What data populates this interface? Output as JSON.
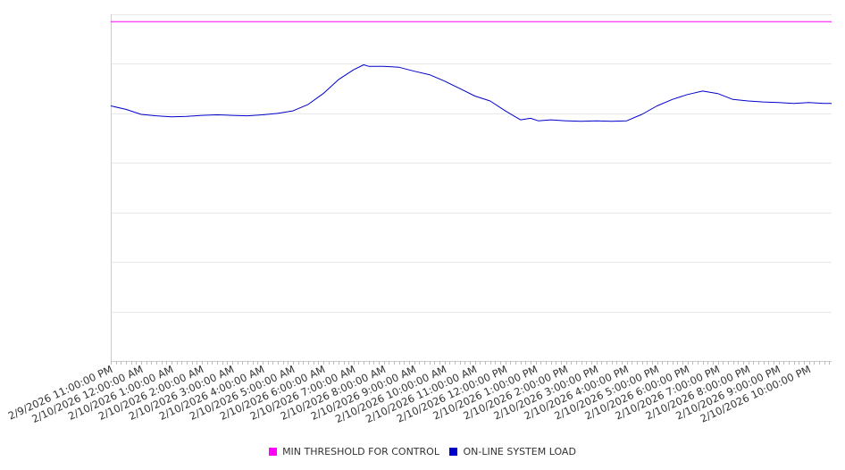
{
  "chart_data": {
    "type": "line",
    "title": "",
    "xlabel": "",
    "ylabel": "",
    "y_tick_labels_shown": false,
    "grid": "horizontal",
    "legend_position": "bottom",
    "x_tick_labels": [
      "2/9/2026 11:00:00 PM",
      "2/10/2026 12:00:00 AM",
      "2/10/2026 1:00:00 AM",
      "2/10/2026 2:00:00 AM",
      "2/10/2026 3:00:00 AM",
      "2/10/2026 4:00:00 AM",
      "2/10/2026 5:00:00 AM",
      "2/10/2026 6:00:00 AM",
      "2/10/2026 7:00:00 AM",
      "2/10/2026 8:00:00 AM",
      "2/10/2026 9:00:00 AM",
      "2/10/2026 10:00:00 AM",
      "2/10/2026 11:00:00 AM",
      "2/10/2026 12:00:00 PM",
      "2/10/2026 1:00:00 PM",
      "2/10/2026 2:00:00 PM",
      "2/10/2026 3:00:00 PM",
      "2/10/2026 4:00:00 PM",
      "2/10/2026 5:00:00 PM",
      "2/10/2026 6:00:00 PM",
      "2/10/2026 7:00:00 PM",
      "2/10/2026 8:00:00 PM",
      "2/10/2026 9:00:00 PM",
      "2/10/2026 10:00:00 PM"
    ],
    "ylim": [
      0,
      7
    ],
    "series": [
      {
        "name": "MIN THRESHOLD FOR CONTROL",
        "color": "#ff00ff",
        "x": [
          "2/9/2026 11:00:00 PM",
          "2/10/2026 10:45:00 PM"
        ],
        "y": [
          6.85,
          6.85
        ]
      },
      {
        "name": "ON-LINE SYSTEM LOAD",
        "color": "#0000cc",
        "x": [
          "2/9/2026 11:00:00 PM",
          "2/9/2026 11:30:00 PM",
          "2/10/2026 12:00:00 AM",
          "2/10/2026 12:30:00 AM",
          "2/10/2026 1:00:00 AM",
          "2/10/2026 1:30:00 AM",
          "2/10/2026 2:00:00 AM",
          "2/10/2026 2:30:00 AM",
          "2/10/2026 3:00:00 AM",
          "2/10/2026 3:30:00 AM",
          "2/10/2026 4:00:00 AM",
          "2/10/2026 4:30:00 AM",
          "2/10/2026 5:00:00 AM",
          "2/10/2026 5:30:00 AM",
          "2/10/2026 6:00:00 AM",
          "2/10/2026 6:30:00 AM",
          "2/10/2026 7:00:00 AM",
          "2/10/2026 7:20:00 AM",
          "2/10/2026 7:30:00 AM",
          "2/10/2026 8:00:00 AM",
          "2/10/2026 8:30:00 AM",
          "2/10/2026 9:00:00 AM",
          "2/10/2026 9:30:00 AM",
          "2/10/2026 10:00:00 AM",
          "2/10/2026 10:30:00 AM",
          "2/10/2026 11:00:00 AM",
          "2/10/2026 11:30:00 AM",
          "2/10/2026 12:00:00 PM",
          "2/10/2026 12:30:00 PM",
          "2/10/2026 12:50:00 PM",
          "2/10/2026 1:05:00 PM",
          "2/10/2026 1:30:00 PM",
          "2/10/2026 2:00:00 PM",
          "2/10/2026 2:30:00 PM",
          "2/10/2026 3:00:00 PM",
          "2/10/2026 3:30:00 PM",
          "2/10/2026 4:00:00 PM",
          "2/10/2026 4:30:00 PM",
          "2/10/2026 5:00:00 PM",
          "2/10/2026 5:30:00 PM",
          "2/10/2026 6:00:00 PM",
          "2/10/2026 6:30:00 PM",
          "2/10/2026 7:00:00 PM",
          "2/10/2026 7:30:00 PM",
          "2/10/2026 8:00:00 PM",
          "2/10/2026 8:30:00 PM",
          "2/10/2026 9:00:00 PM",
          "2/10/2026 9:30:00 PM",
          "2/10/2026 10:00:00 PM",
          "2/10/2026 10:30:00 PM",
          "2/10/2026 10:45:00 PM"
        ],
        "y": [
          5.15,
          5.08,
          4.98,
          4.95,
          4.93,
          4.94,
          4.96,
          4.97,
          4.96,
          4.95,
          4.97,
          5.0,
          5.05,
          5.18,
          5.4,
          5.68,
          5.88,
          5.98,
          5.95,
          5.95,
          5.93,
          5.85,
          5.78,
          5.65,
          5.5,
          5.35,
          5.25,
          5.05,
          4.87,
          4.9,
          4.85,
          4.87,
          4.85,
          4.84,
          4.85,
          4.84,
          4.85,
          4.98,
          5.15,
          5.28,
          5.38,
          5.45,
          5.4,
          5.28,
          5.25,
          5.23,
          5.22,
          5.2,
          5.22,
          5.2,
          5.2
        ]
      }
    ]
  }
}
